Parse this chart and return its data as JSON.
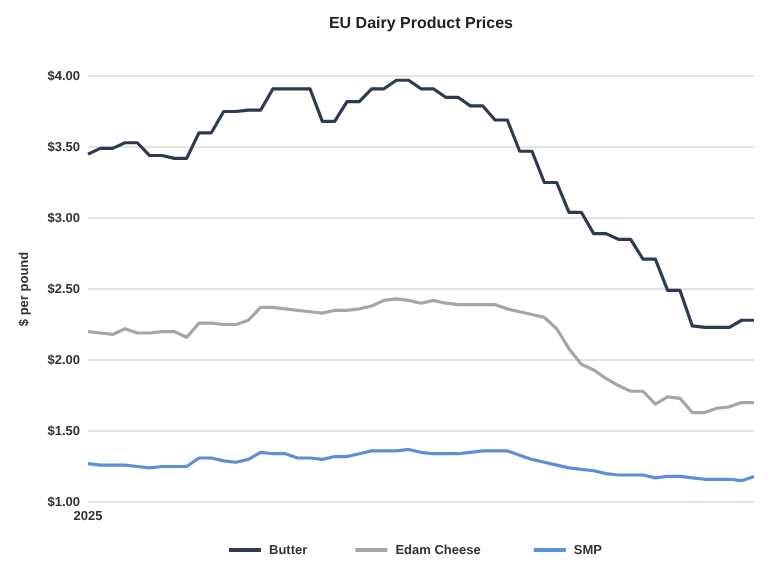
{
  "chart_data": {
    "type": "line",
    "title": "EU Dairy Product Prices",
    "ylabel": "$ per pound",
    "categories": [
      "2025",
      null,
      null,
      null,
      null,
      null,
      null,
      null,
      null,
      null,
      null,
      null,
      null,
      null,
      null,
      null,
      null,
      null,
      null,
      null,
      null,
      null,
      null,
      null,
      null,
      null,
      null,
      null,
      null,
      null,
      null,
      null,
      null,
      null,
      null,
      null,
      null,
      null,
      null,
      null,
      null,
      null,
      null,
      null,
      null,
      null,
      null,
      null,
      null,
      null,
      null,
      null,
      null,
      null,
      null
    ],
    "ylim": [
      1,
      4
    ],
    "yticks": [
      {
        "value": 1,
        "label": "$1.00"
      },
      {
        "value": 1.5,
        "label": "$1.50"
      },
      {
        "value": 2,
        "label": "$2.00"
      },
      {
        "value": 2.5,
        "label": "$2.50"
      },
      {
        "value": 3,
        "label": "$3.00"
      },
      {
        "value": 3.5,
        "label": "$3.50"
      },
      {
        "value": 4,
        "label": "$4.00"
      }
    ],
    "grid": "y",
    "legend": "bottom",
    "marker": "none",
    "series": [
      {
        "name": "Butter",
        "color": "#2e3a52",
        "values": [
          3.45,
          3.49,
          3.49,
          3.53,
          3.53,
          3.44,
          3.44,
          3.42,
          3.42,
          3.6,
          3.6,
          3.75,
          3.75,
          3.76,
          3.76,
          3.91,
          3.91,
          3.91,
          3.91,
          3.68,
          3.68,
          3.82,
          3.82,
          3.91,
          3.91,
          3.97,
          3.97,
          3.91,
          3.91,
          3.85,
          3.85,
          3.79,
          3.79,
          3.69,
          3.69,
          3.47,
          3.47,
          3.25,
          3.25,
          3.04,
          3.04,
          2.89,
          2.89,
          2.85,
          2.85,
          2.71,
          2.71,
          2.49,
          2.49,
          2.24,
          2.23,
          2.23,
          2.23,
          2.28,
          2.28
        ]
      },
      {
        "name": "Edam Cheese",
        "color": "#a6a6a6",
        "values": [
          2.2,
          2.19,
          2.18,
          2.22,
          2.19,
          2.19,
          2.2,
          2.2,
          2.16,
          2.26,
          2.26,
          2.25,
          2.25,
          2.28,
          2.37,
          2.37,
          2.36,
          2.35,
          2.34,
          2.33,
          2.35,
          2.35,
          2.36,
          2.38,
          2.42,
          2.43,
          2.42,
          2.4,
          2.42,
          2.4,
          2.39,
          2.39,
          2.39,
          2.39,
          2.36,
          2.34,
          2.32,
          2.3,
          2.22,
          2.08,
          1.97,
          1.93,
          1.87,
          1.82,
          1.78,
          1.78,
          1.69,
          1.74,
          1.73,
          1.63,
          1.63,
          1.66,
          1.67,
          1.7,
          1.7
        ]
      },
      {
        "name": "SMP",
        "color": "#5b8fd6",
        "values": [
          1.27,
          1.26,
          1.26,
          1.26,
          1.25,
          1.24,
          1.25,
          1.25,
          1.25,
          1.31,
          1.31,
          1.29,
          1.28,
          1.3,
          1.35,
          1.34,
          1.34,
          1.31,
          1.31,
          1.3,
          1.32,
          1.32,
          1.34,
          1.36,
          1.36,
          1.36,
          1.37,
          1.35,
          1.34,
          1.34,
          1.34,
          1.35,
          1.36,
          1.36,
          1.36,
          1.33,
          1.3,
          1.28,
          1.26,
          1.24,
          1.23,
          1.22,
          1.2,
          1.19,
          1.19,
          1.19,
          1.17,
          1.18,
          1.18,
          1.17,
          1.16,
          1.16,
          1.16,
          1.15,
          1.18
        ]
      }
    ]
  }
}
